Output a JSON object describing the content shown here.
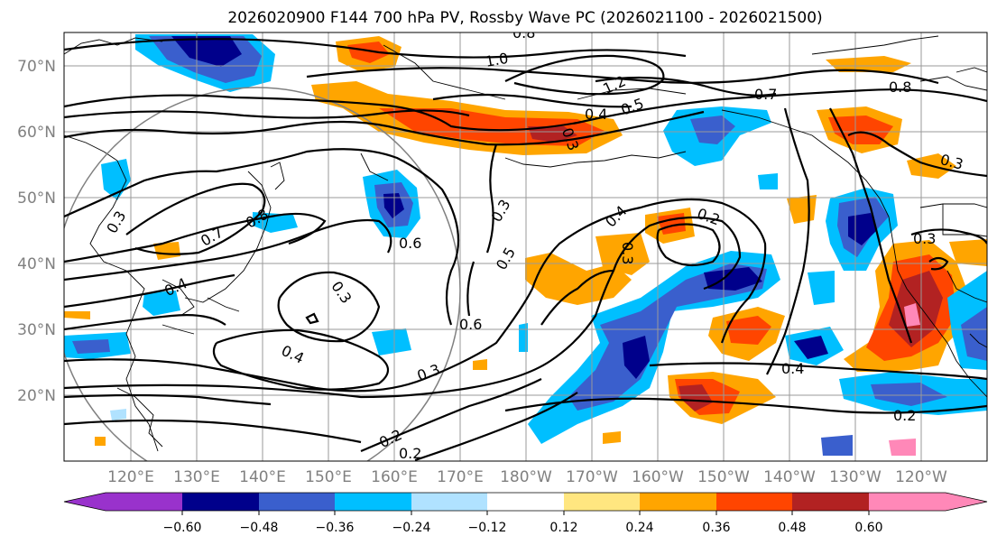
{
  "title": "2026020900 F144 700 hPa PV, Rossby Wave PC (2026021100 - 2026021500)",
  "lat_labels": [
    "70°N",
    "60°N",
    "50°N",
    "40°N",
    "30°N",
    "20°N"
  ],
  "lon_labels": [
    "120°E",
    "130°E",
    "140°E",
    "150°E",
    "160°E",
    "170°E",
    "180°W",
    "170°W",
    "160°W",
    "150°W",
    "140°W",
    "130°W",
    "120°W"
  ],
  "colorbar": {
    "tick_labels": [
      "−0.60",
      "−0.48",
      "−0.36",
      "−0.24",
      "−0.12",
      "0.12",
      "0.24",
      "0.36",
      "0.48",
      "0.60"
    ],
    "colors": [
      "#9932cc",
      "#00008b",
      "#3a5fcd",
      "#00bfff",
      "#b0e2ff",
      "#ffffff",
      "#ffe680",
      "#ffa500",
      "#ff4500",
      "#b22222",
      "#ff88b8"
    ]
  },
  "contour_labels": [
    "0.8",
    "1.0",
    "1.2",
    "0.7",
    "0.4",
    "0.5",
    "0.3",
    "0.8",
    "0.3",
    "0.3",
    "0.4",
    "0.2",
    "0.5",
    "0.3",
    "0.6",
    "0.3",
    "0.7",
    "0.8",
    "0.4",
    "0.3",
    "0.4",
    "0.6",
    "0.3",
    "0.2",
    "0.2",
    "0.4",
    "0.2",
    "0.3"
  ]
}
